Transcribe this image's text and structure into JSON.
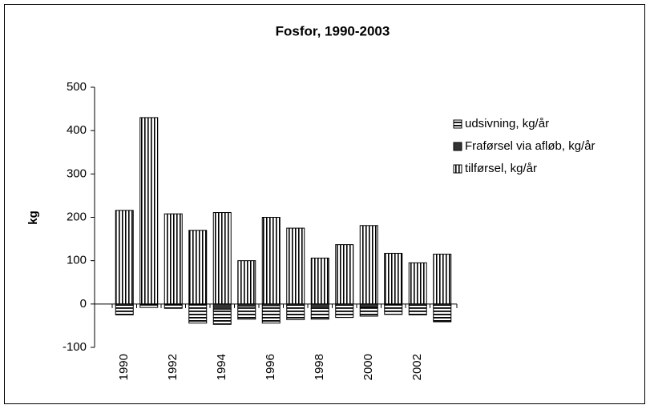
{
  "chart_data": {
    "type": "stacked-bar",
    "title": "Fosfor, 1990-2003",
    "y_label": "kg",
    "categories": [
      "1990",
      null,
      "1992",
      null,
      "1994",
      null,
      "1996",
      null,
      "1998",
      null,
      "2000",
      null,
      "2002",
      null
    ],
    "series": [
      {
        "name": "tilførsel, kg/år",
        "color": "#000000",
        "pattern": "vertical",
        "values": [
          216,
          430,
          208,
          170,
          211,
          100,
          200,
          175,
          106,
          137,
          181,
          117,
          95,
          115
        ]
      },
      {
        "name": "Fraførsel via afløb, kg/år",
        "color": "#333333",
        "pattern": "solid",
        "values": [
          -3,
          0,
          0,
          -2,
          -12,
          -5,
          -4,
          -3,
          -10,
          -3,
          -8,
          -2,
          -3,
          -3
        ]
      },
      {
        "name": "udsivning, kg/år",
        "color": "#000000",
        "pattern": "horizontal",
        "values": [
          -22,
          -8,
          -10,
          -42,
          -35,
          -30,
          -40,
          -33,
          -25,
          -28,
          -20,
          -22,
          -22,
          -38
        ]
      }
    ],
    "ylim": [
      -100,
      500
    ],
    "yticks": [
      -100,
      0,
      100,
      200,
      300,
      400,
      500
    ],
    "grid": false,
    "legend": "right"
  }
}
